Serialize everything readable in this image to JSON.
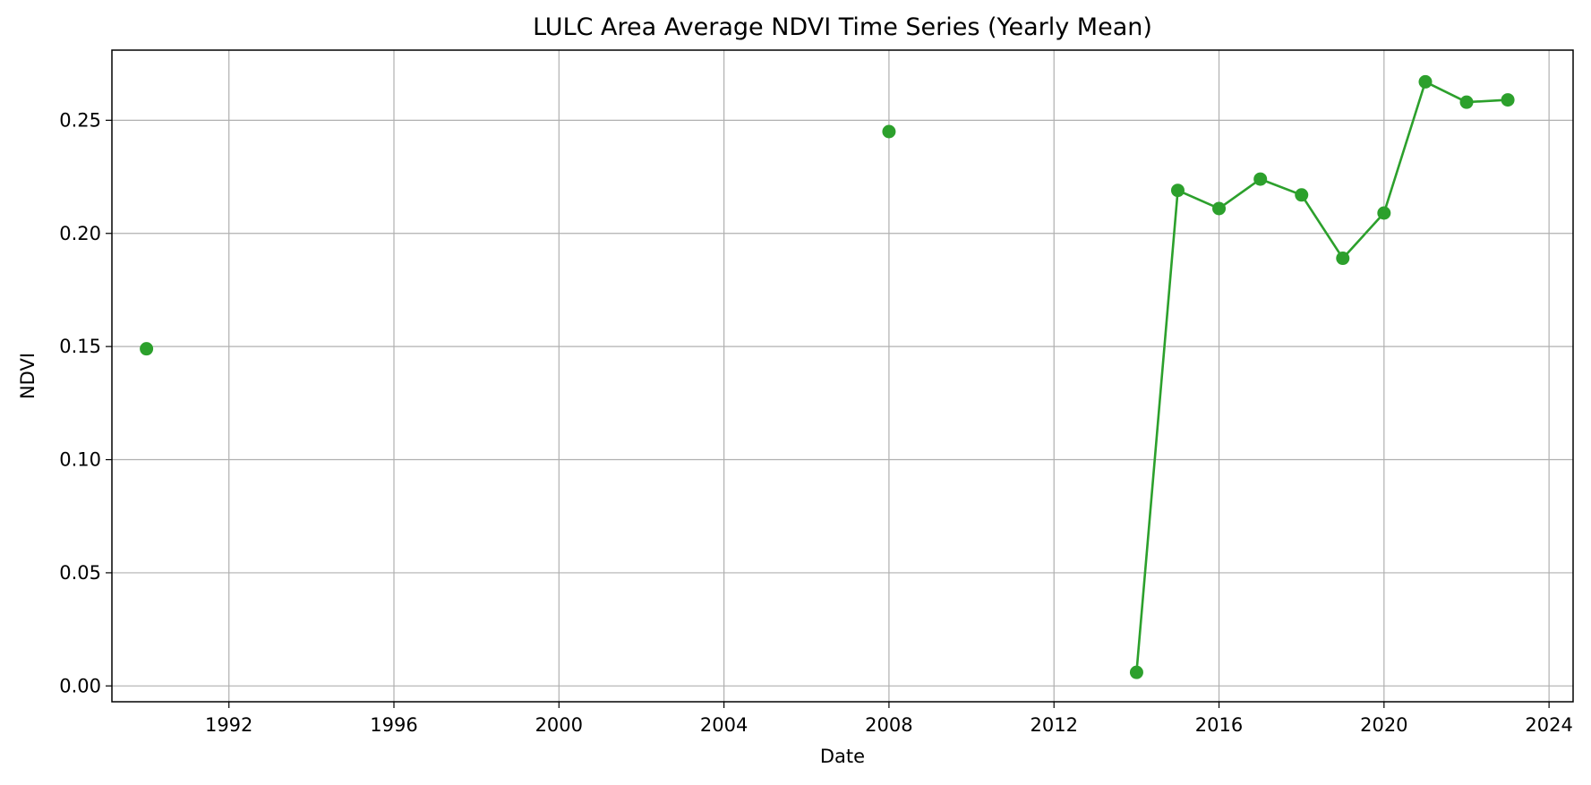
{
  "chart_data": {
    "type": "line",
    "title": "LULC Area Average NDVI Time Series (Yearly Mean)",
    "xlabel": "Date",
    "ylabel": "NDVI",
    "x_type": "date",
    "xlim": [
      "1989-03-01",
      "2024-08-01"
    ],
    "ylim": [
      -0.007,
      0.281
    ],
    "x_ticks": [
      "1992",
      "1996",
      "2000",
      "2004",
      "2008",
      "2012",
      "2016",
      "2020",
      "2024"
    ],
    "y_ticks": [
      "0.00",
      "0.05",
      "0.10",
      "0.15",
      "0.20",
      "0.25"
    ],
    "grid": true,
    "legend": "none",
    "series": [
      {
        "color": "#2ca02c",
        "marker": "circle",
        "segments": [
          {
            "x": [
              "1990"
            ],
            "y": [
              0.149
            ]
          },
          {
            "x": [
              "2008"
            ],
            "y": [
              0.245
            ]
          },
          {
            "x": [
              "2014",
              "2015",
              "2016",
              "2017",
              "2018",
              "2019",
              "2020",
              "2021",
              "2022",
              "2023"
            ],
            "y": [
              0.006,
              0.219,
              0.211,
              0.224,
              0.217,
              0.189,
              0.209,
              0.267,
              0.258,
              0.259
            ]
          }
        ]
      }
    ]
  }
}
